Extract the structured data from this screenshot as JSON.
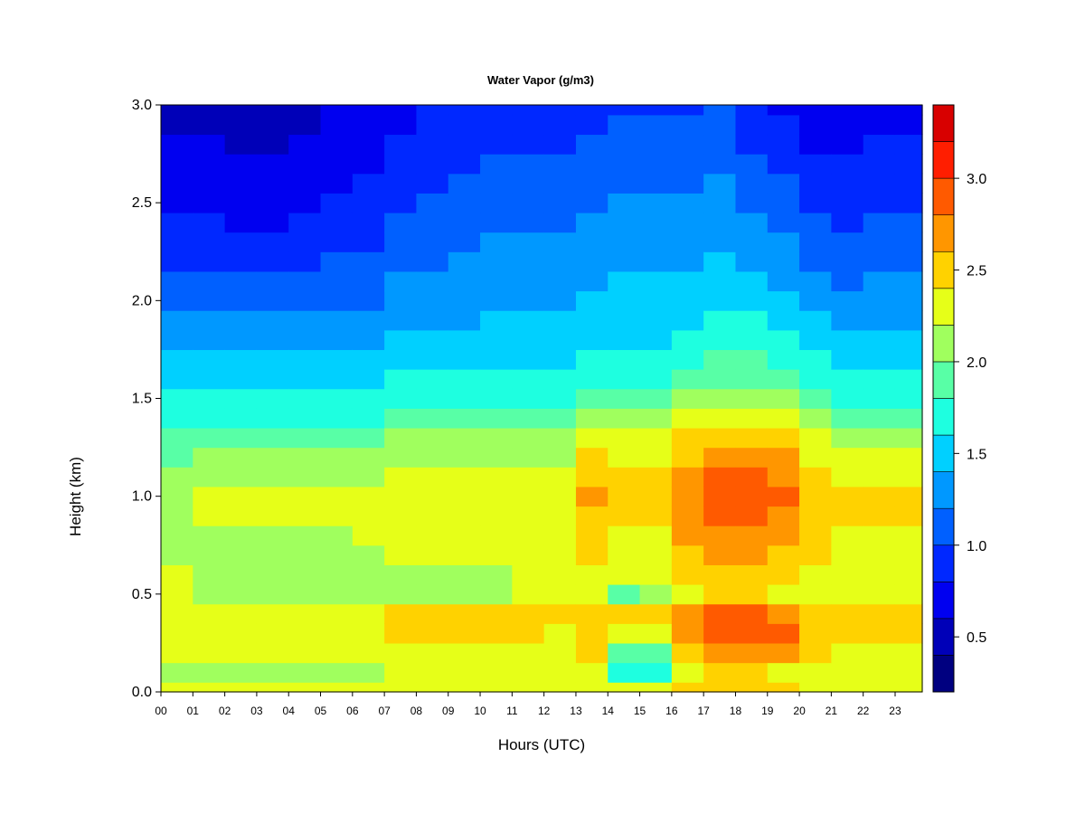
{
  "chart_data": {
    "type": "heatmap",
    "title": "Water Vapor (g/m3)",
    "xlabel": "Hours (UTC)",
    "ylabel": "Height (km)",
    "xlim": [
      0,
      23.85
    ],
    "ylim": [
      0.0,
      3.0
    ],
    "x_ticks": [
      "00",
      "01",
      "02",
      "03",
      "04",
      "05",
      "06",
      "07",
      "08",
      "09",
      "10",
      "11",
      "12",
      "13",
      "14",
      "15",
      "16",
      "17",
      "18",
      "19",
      "20",
      "21",
      "22",
      "23"
    ],
    "y_ticks": [
      "0.0",
      "0.5",
      "1.0",
      "1.5",
      "2.0",
      "2.5",
      "3.0"
    ],
    "colorbar": {
      "range": [
        0.2,
        3.4
      ],
      "levels": [
        0.2,
        0.4,
        0.6,
        0.8,
        1.0,
        1.2,
        1.4,
        1.6,
        1.8,
        2.0,
        2.2,
        2.4,
        2.6,
        2.8,
        3.0,
        3.2,
        3.4
      ],
      "colors": [
        "#000080",
        "#0000b8",
        "#0000f0",
        "#0028ff",
        "#0060ff",
        "#0098ff",
        "#00d0ff",
        "#1effe0",
        "#58ffa6",
        "#a0ff5e",
        "#e6ff18",
        "#ffd200",
        "#ff9600",
        "#ff5a00",
        "#ff1e00",
        "#d80000",
        "#800000"
      ],
      "tick_labels": [
        "0.5",
        "1.0",
        "1.5",
        "2.0",
        "2.5",
        "3.0"
      ]
    },
    "hours": [
      0,
      1,
      2,
      3,
      4,
      5,
      6,
      7,
      8,
      9,
      10,
      11,
      12,
      13,
      14,
      15,
      16,
      17,
      18,
      19,
      20,
      21,
      22,
      23
    ],
    "heights": [
      0.0,
      0.1,
      0.2,
      0.3,
      0.4,
      0.5,
      0.6,
      0.7,
      0.8,
      0.9,
      1.0,
      1.1,
      1.2,
      1.3,
      1.4,
      1.5,
      1.6,
      1.7,
      1.8,
      1.9,
      2.0,
      2.1,
      2.2,
      2.3,
      2.4,
      2.5,
      2.6,
      2.7,
      2.8,
      2.9,
      3.0
    ],
    "values": [
      [
        2.2,
        2.1,
        2.2,
        2.3,
        2.2,
        2.2,
        2.2,
        2.0,
        2.0,
        2.0,
        2.0,
        2.0,
        1.9,
        1.8,
        1.7,
        1.6,
        1.5,
        1.4,
        1.3,
        1.2,
        1.1,
        1.0,
        0.9,
        0.8,
        0.8,
        0.7,
        0.7,
        0.6,
        0.6,
        0.5,
        0.5
      ],
      [
        2.2,
        2.1,
        2.2,
        2.3,
        2.2,
        2.1,
        2.1,
        2.1,
        2.1,
        2.2,
        2.2,
        2.1,
        2.0,
        1.9,
        1.7,
        1.6,
        1.5,
        1.4,
        1.3,
        1.2,
        1.1,
        1.0,
        0.9,
        0.8,
        0.8,
        0.7,
        0.6,
        0.6,
        0.6,
        0.5,
        0.5
      ],
      [
        2.2,
        2.1,
        2.2,
        2.3,
        2.3,
        2.1,
        2.1,
        2.1,
        2.1,
        2.2,
        2.2,
        2.1,
        2.0,
        1.9,
        1.7,
        1.6,
        1.5,
        1.4,
        1.3,
        1.2,
        1.1,
        1.0,
        0.9,
        0.8,
        0.7,
        0.7,
        0.6,
        0.6,
        0.5,
        0.5,
        0.5
      ],
      [
        2.2,
        2.1,
        2.2,
        2.3,
        2.3,
        2.1,
        2.1,
        2.1,
        2.1,
        2.2,
        2.2,
        2.1,
        2.0,
        1.9,
        1.7,
        1.6,
        1.5,
        1.4,
        1.3,
        1.2,
        1.1,
        1.0,
        0.9,
        0.8,
        0.7,
        0.7,
        0.6,
        0.6,
        0.5,
        0.5,
        0.5
      ],
      [
        2.2,
        2.1,
        2.2,
        2.3,
        2.3,
        2.0,
        2.0,
        2.1,
        2.1,
        2.2,
        2.2,
        2.1,
        2.0,
        1.9,
        1.7,
        1.6,
        1.5,
        1.4,
        1.3,
        1.2,
        1.1,
        1.0,
        0.9,
        0.9,
        0.8,
        0.7,
        0.7,
        0.6,
        0.6,
        0.5,
        0.5
      ],
      [
        2.2,
        2.1,
        2.2,
        2.3,
        2.3,
        2.0,
        2.0,
        2.1,
        2.1,
        2.2,
        2.2,
        2.1,
        2.0,
        1.9,
        1.7,
        1.6,
        1.5,
        1.4,
        1.3,
        1.2,
        1.1,
        1.0,
        1.0,
        0.9,
        0.8,
        0.8,
        0.7,
        0.7,
        0.6,
        0.6,
        0.6
      ],
      [
        2.2,
        2.1,
        2.2,
        2.3,
        2.3,
        2.0,
        2.0,
        2.1,
        2.2,
        2.2,
        2.2,
        2.1,
        2.0,
        1.9,
        1.7,
        1.6,
        1.5,
        1.4,
        1.3,
        1.2,
        1.1,
        1.1,
        1.0,
        0.9,
        0.9,
        0.8,
        0.8,
        0.7,
        0.7,
        0.6,
        0.6
      ],
      [
        2.3,
        2.2,
        2.3,
        2.4,
        2.4,
        2.1,
        2.1,
        2.2,
        2.2,
        2.3,
        2.3,
        2.2,
        2.1,
        2.0,
        1.8,
        1.7,
        1.6,
        1.5,
        1.4,
        1.3,
        1.2,
        1.2,
        1.1,
        1.0,
        1.0,
        0.9,
        0.9,
        0.8,
        0.8,
        0.7,
        0.7
      ],
      [
        2.3,
        2.3,
        2.3,
        2.4,
        2.4,
        2.1,
        2.1,
        2.2,
        2.2,
        2.3,
        2.3,
        2.2,
        2.1,
        2.0,
        1.8,
        1.7,
        1.6,
        1.5,
        1.4,
        1.3,
        1.2,
        1.2,
        1.1,
        1.1,
        1.0,
        1.0,
        0.9,
        0.9,
        0.8,
        0.8,
        0.8
      ],
      [
        2.3,
        2.3,
        2.3,
        2.4,
        2.4,
        2.1,
        2.1,
        2.2,
        2.2,
        2.3,
        2.3,
        2.2,
        2.1,
        2.0,
        1.8,
        1.7,
        1.6,
        1.5,
        1.4,
        1.3,
        1.3,
        1.2,
        1.2,
        1.1,
        1.1,
        1.0,
        1.0,
        0.9,
        0.9,
        0.8,
        0.8
      ],
      [
        2.3,
        2.3,
        2.3,
        2.4,
        2.4,
        2.1,
        2.1,
        2.2,
        2.2,
        2.3,
        2.3,
        2.2,
        2.1,
        2.0,
        1.8,
        1.7,
        1.6,
        1.5,
        1.4,
        1.4,
        1.3,
        1.3,
        1.2,
        1.2,
        1.1,
        1.1,
        1.0,
        1.0,
        0.9,
        0.9,
        0.8
      ],
      [
        2.3,
        2.3,
        2.3,
        2.4,
        2.4,
        2.2,
        2.2,
        2.2,
        2.2,
        2.3,
        2.3,
        2.2,
        2.1,
        2.0,
        1.8,
        1.7,
        1.6,
        1.5,
        1.4,
        1.4,
        1.3,
        1.3,
        1.2,
        1.2,
        1.1,
        1.1,
        1.0,
        1.0,
        0.9,
        0.9,
        0.8
      ],
      [
        2.2,
        2.2,
        2.3,
        2.3,
        2.4,
        2.2,
        2.2,
        2.2,
        2.2,
        2.3,
        2.3,
        2.2,
        2.1,
        2.0,
        1.8,
        1.7,
        1.6,
        1.5,
        1.4,
        1.4,
        1.3,
        1.3,
        1.2,
        1.2,
        1.1,
        1.1,
        1.0,
        1.0,
        0.9,
        0.9,
        0.8
      ],
      [
        2.3,
        2.3,
        2.4,
        2.4,
        2.5,
        2.3,
        2.3,
        2.4,
        2.4,
        2.5,
        2.6,
        2.5,
        2.4,
        2.3,
        2.1,
        1.9,
        1.7,
        1.6,
        1.5,
        1.4,
        1.4,
        1.3,
        1.3,
        1.2,
        1.2,
        1.1,
        1.1,
        1.0,
        1.0,
        0.9,
        0.9
      ],
      [
        2.3,
        1.7,
        1.8,
        2.3,
        2.4,
        1.9,
        2.2,
        2.3,
        2.3,
        2.4,
        2.5,
        2.4,
        2.3,
        2.2,
        2.0,
        1.9,
        1.7,
        1.6,
        1.5,
        1.5,
        1.4,
        1.4,
        1.3,
        1.3,
        1.2,
        1.2,
        1.1,
        1.1,
        1.0,
        1.0,
        0.9
      ],
      [
        2.3,
        1.7,
        1.8,
        2.3,
        2.4,
        2.1,
        2.2,
        2.3,
        2.3,
        2.4,
        2.5,
        2.4,
        2.3,
        2.2,
        2.0,
        1.9,
        1.7,
        1.6,
        1.5,
        1.5,
        1.4,
        1.4,
        1.3,
        1.3,
        1.2,
        1.2,
        1.1,
        1.1,
        1.0,
        1.0,
        0.9
      ],
      [
        2.4,
        2.2,
        2.5,
        2.7,
        2.6,
        2.3,
        2.4,
        2.5,
        2.6,
        2.7,
        2.7,
        2.6,
        2.5,
        2.4,
        2.2,
        2.0,
        1.8,
        1.7,
        1.6,
        1.5,
        1.4,
        1.4,
        1.3,
        1.3,
        1.2,
        1.2,
        1.1,
        1.1,
        1.0,
        1.0,
        0.9
      ],
      [
        2.5,
        2.4,
        2.7,
        2.9,
        2.8,
        2.4,
        2.5,
        2.6,
        2.7,
        2.8,
        2.9,
        2.8,
        2.7,
        2.5,
        2.3,
        2.1,
        1.9,
        1.8,
        1.7,
        1.6,
        1.5,
        1.4,
        1.4,
        1.3,
        1.3,
        1.2,
        1.2,
        1.1,
        1.1,
        1.0,
        1.0
      ],
      [
        2.5,
        2.4,
        2.7,
        2.9,
        2.8,
        2.4,
        2.5,
        2.6,
        2.7,
        2.8,
        2.9,
        2.8,
        2.7,
        2.5,
        2.3,
        2.1,
        1.9,
        1.8,
        1.7,
        1.6,
        1.5,
        1.4,
        1.3,
        1.3,
        1.2,
        1.1,
        1.1,
        1.0,
        0.9,
        0.9,
        0.8
      ],
      [
        2.4,
        2.3,
        2.6,
        2.8,
        2.7,
        2.3,
        2.4,
        2.5,
        2.6,
        2.7,
        2.8,
        2.7,
        2.6,
        2.4,
        2.2,
        2.0,
        1.8,
        1.7,
        1.6,
        1.5,
        1.4,
        1.3,
        1.2,
        1.2,
        1.1,
        1.0,
        1.0,
        0.9,
        0.8,
        0.8,
        0.7
      ],
      [
        2.3,
        2.2,
        2.4,
        2.5,
        2.5,
        2.2,
        2.3,
        2.4,
        2.4,
        2.5,
        2.5,
        2.4,
        2.3,
        2.2,
        2.0,
        1.8,
        1.7,
        1.6,
        1.5,
        1.4,
        1.3,
        1.2,
        1.1,
        1.1,
        1.0,
        0.9,
        0.9,
        0.8,
        0.7,
        0.7,
        0.6
      ],
      [
        2.3,
        2.2,
        2.3,
        2.4,
        2.4,
        2.2,
        2.2,
        2.3,
        2.3,
        2.4,
        2.4,
        2.3,
        2.2,
        2.1,
        1.9,
        1.7,
        1.6,
        1.5,
        1.4,
        1.3,
        1.2,
        1.1,
        1.1,
        1.0,
        0.9,
        0.9,
        0.8,
        0.8,
        0.7,
        0.7,
        0.6
      ],
      [
        2.3,
        2.2,
        2.3,
        2.4,
        2.4,
        2.2,
        2.2,
        2.3,
        2.3,
        2.4,
        2.4,
        2.3,
        2.2,
        2.1,
        1.9,
        1.7,
        1.6,
        1.5,
        1.4,
        1.3,
        1.2,
        1.2,
        1.1,
        1.0,
        1.0,
        0.9,
        0.9,
        0.8,
        0.8,
        0.7,
        0.7
      ],
      [
        2.3,
        2.2,
        2.3,
        2.4,
        2.4,
        2.2,
        2.2,
        2.3,
        2.3,
        2.4,
        2.5,
        2.3,
        2.2,
        2.1,
        1.9,
        1.7,
        1.6,
        1.5,
        1.4,
        1.3,
        1.2,
        1.2,
        1.1,
        1.0,
        1.0,
        0.9,
        0.9,
        0.8,
        0.8,
        0.7,
        0.7
      ]
    ]
  }
}
